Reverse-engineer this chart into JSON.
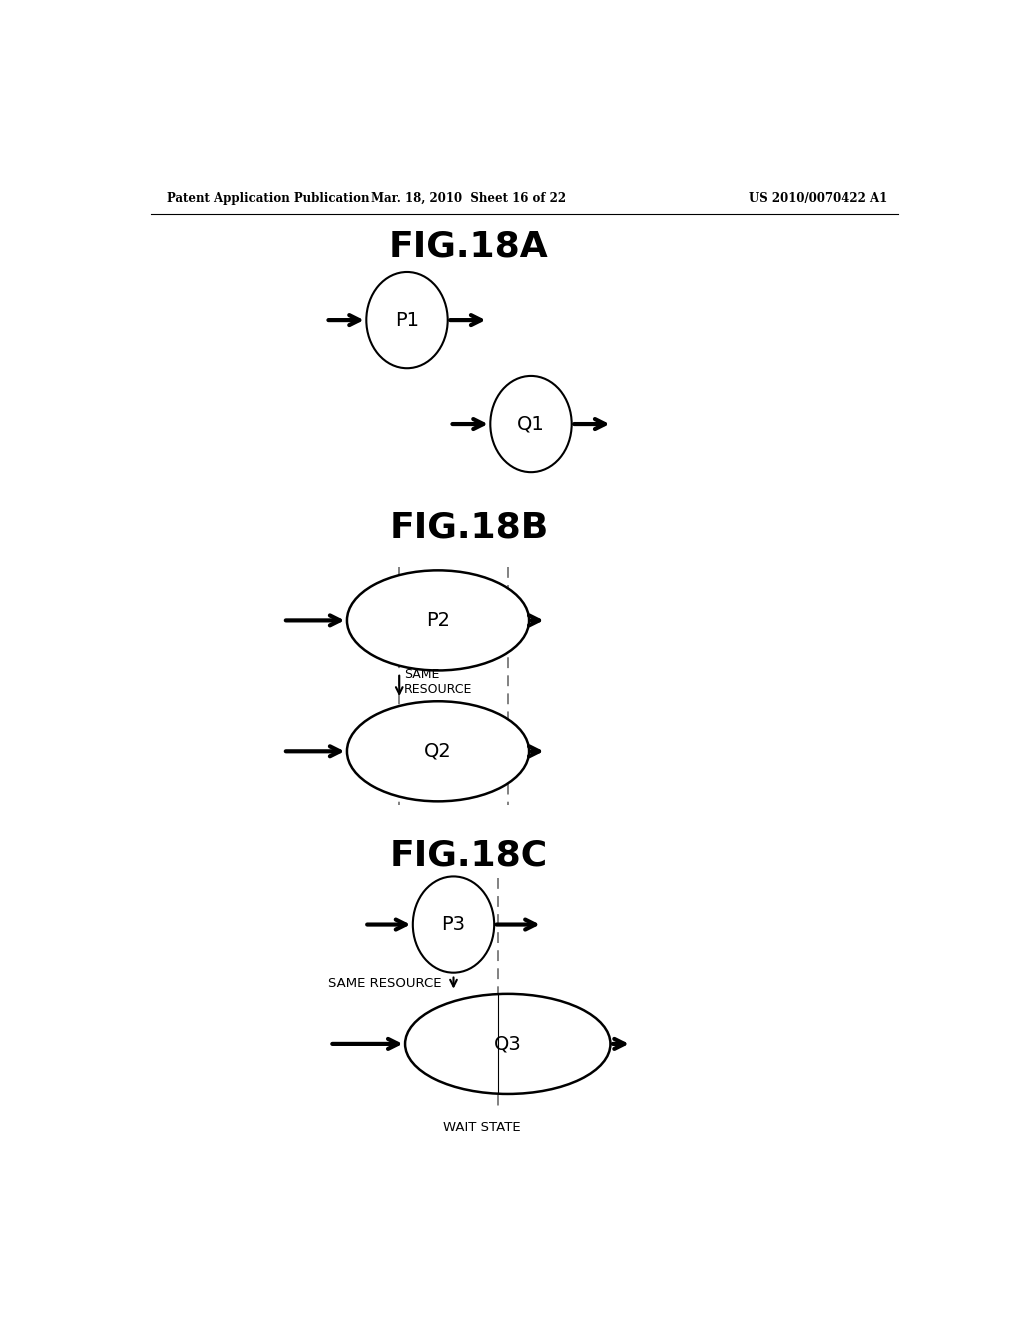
{
  "bg_color": "#ffffff",
  "header_left": "Patent Application Publication",
  "header_mid": "Mar. 18, 2010  Sheet 16 of 22",
  "header_right": "US 2010/0070422 A1",
  "fig18a_title": "FIG.18A",
  "fig18b_title": "FIG.18B",
  "fig18c_title": "FIG.18C",
  "p1_label": "P1",
  "q1_label": "Q1",
  "p2_label": "P2",
  "q2_label": "Q2",
  "p3_label": "P3",
  "q3_label": "Q3",
  "same_resource_b": "SAME\nRESOURCE",
  "same_resource_c": "SAME RESOURCE",
  "wait_state": "WAIT STATE",
  "ellipse_color": "#000000",
  "arrow_color": "#000000",
  "dashed_color": "#777777"
}
